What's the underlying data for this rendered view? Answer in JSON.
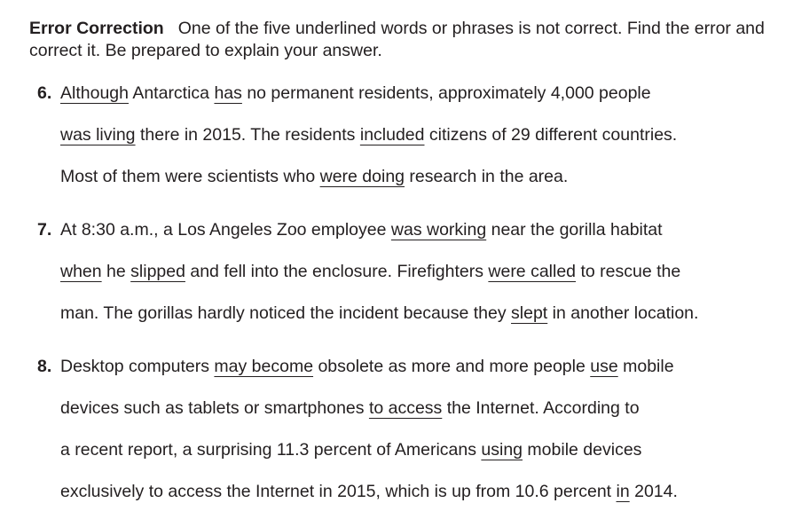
{
  "intro": {
    "heading": "Error Correction",
    "instructions": "One of the five underlined words or phrases is not correct. Find the error and correct it. Be prepared to explain your answer."
  },
  "items": [
    {
      "number": "6.",
      "lines": [
        [
          {
            "text": "Although",
            "u": true
          },
          {
            "text": " Antarctica "
          },
          {
            "text": "has",
            "u": true
          },
          {
            "text": " no permanent residents, approximately 4,000 people"
          }
        ],
        [
          {
            "text": "was living",
            "u": true
          },
          {
            "text": " there in 2015. The residents "
          },
          {
            "text": "included",
            "u": true
          },
          {
            "text": " citizens of 29 different countries."
          }
        ],
        [
          {
            "text": "Most of them were scientists who "
          },
          {
            "text": "were doing",
            "u": true
          },
          {
            "text": " research in the area."
          }
        ]
      ]
    },
    {
      "number": "7.",
      "lines": [
        [
          {
            "text": "At 8:30 a.m., a Los Angeles Zoo employee "
          },
          {
            "text": "was working",
            "u": true
          },
          {
            "text": " near the gorilla habitat"
          }
        ],
        [
          {
            "text": "when",
            "u": true
          },
          {
            "text": " he "
          },
          {
            "text": "slipped",
            "u": true
          },
          {
            "text": " and fell into the enclosure. Firefighters "
          },
          {
            "text": "were called",
            "u": true
          },
          {
            "text": " to rescue the"
          }
        ],
        [
          {
            "text": "man. The gorillas hardly noticed the incident because they "
          },
          {
            "text": "slept",
            "u": true
          },
          {
            "text": " in another location."
          }
        ]
      ]
    },
    {
      "number": "8.",
      "lines": [
        [
          {
            "text": "Desktop computers "
          },
          {
            "text": "may become",
            "u": true
          },
          {
            "text": " obsolete as more and more people "
          },
          {
            "text": "use",
            "u": true
          },
          {
            "text": " mobile"
          }
        ],
        [
          {
            "text": "devices such as tablets or smartphones "
          },
          {
            "text": "to access",
            "u": true
          },
          {
            "text": " the Internet. According to"
          }
        ],
        [
          {
            "text": "a recent report, a surprising 11.3 percent of Americans "
          },
          {
            "text": "using",
            "u": true
          },
          {
            "text": " mobile devices"
          }
        ],
        [
          {
            "text": "exclusively to access the Internet in 2015, which is up from 10.6 percent "
          },
          {
            "text": "in",
            "u": true
          },
          {
            "text": " 2014."
          }
        ]
      ]
    }
  ]
}
